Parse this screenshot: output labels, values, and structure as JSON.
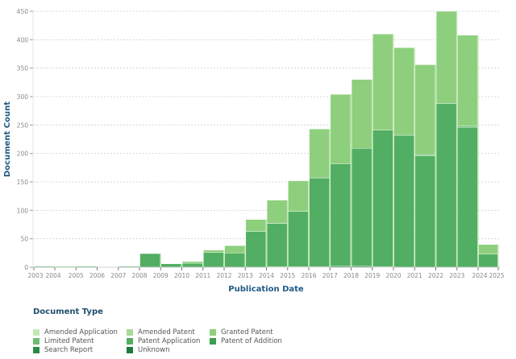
{
  "chart_data": {
    "type": "bar",
    "stacked": true,
    "title": "",
    "xlabel": "Publication Date",
    "ylabel": "Document Count",
    "ylim": [
      0,
      450
    ],
    "yticks": [
      0,
      50,
      100,
      150,
      200,
      250,
      300,
      350,
      400,
      450
    ],
    "grid": true,
    "legend_title": "Document Type",
    "legend_position": "bottom-left",
    "categories": [
      "2003",
      "2004",
      "2005",
      "2006",
      "2007",
      "2008",
      "2009",
      "2010",
      "2011",
      "2012",
      "2013",
      "2014",
      "2015",
      "2016",
      "2017",
      "2018",
      "2019",
      "2020",
      "2021",
      "2022",
      "2023",
      "2024"
    ],
    "tick_labels": [
      "2003",
      "2004",
      "2005",
      "2006",
      "2007",
      "2008",
      "2009",
      "2010",
      "2011",
      "2012",
      "2013",
      "2014",
      "2015",
      "2016",
      "2017",
      "2018",
      "2019",
      "2020",
      "2021",
      "2022",
      "2023",
      "2024",
      "2025"
    ],
    "series": [
      {
        "name": "Unknown",
        "color": "#1e7a3c",
        "values": [
          0,
          0,
          0,
          0,
          0,
          0,
          0,
          0,
          0,
          0,
          0,
          1,
          1,
          1,
          2,
          2,
          1,
          0,
          0,
          0,
          0,
          0
        ]
      },
      {
        "name": "Search Report",
        "color": "#2e8b47",
        "values": [
          0,
          0,
          0,
          0,
          0,
          0,
          0,
          0,
          0,
          0,
          0,
          0,
          0,
          0,
          0,
          0,
          0,
          0,
          0,
          0,
          0,
          0
        ]
      },
      {
        "name": "Patent of Addition",
        "color": "#3c9e50",
        "values": [
          0,
          0,
          0,
          0,
          0,
          0,
          0,
          0,
          0,
          0,
          0,
          0,
          0,
          0,
          0,
          0,
          0,
          0,
          0,
          0,
          0,
          0
        ]
      },
      {
        "name": "Patent Application",
        "color": "#52ae62",
        "values": [
          1,
          0,
          1,
          0,
          1,
          24,
          6,
          7,
          26,
          25,
          63,
          76,
          97,
          156,
          180,
          207,
          240,
          232,
          196,
          288,
          246,
          23
        ]
      },
      {
        "name": "Limited Patent",
        "color": "#6bbf72",
        "values": [
          0,
          0,
          0,
          0,
          0,
          0,
          0,
          0,
          0,
          0,
          0,
          0,
          0,
          0,
          0,
          0,
          0,
          0,
          2,
          0,
          2,
          0
        ]
      },
      {
        "name": "Granted Patent",
        "color": "#8ecf7e",
        "values": [
          0,
          1,
          0,
          0,
          0,
          0,
          0,
          3,
          4,
          13,
          21,
          41,
          54,
          86,
          122,
          121,
          169,
          154,
          158,
          162,
          160,
          17
        ]
      },
      {
        "name": "Amended Patent",
        "color": "#a7da95",
        "values": [
          0,
          0,
          0,
          0,
          0,
          0,
          0,
          0,
          0,
          0,
          0,
          0,
          0,
          0,
          0,
          0,
          0,
          0,
          0,
          0,
          0,
          0
        ]
      },
      {
        "name": "Amended Application",
        "color": "#c5e8b4",
        "values": [
          0,
          0,
          0,
          0,
          0,
          0,
          0,
          0,
          0,
          0,
          0,
          0,
          0,
          0,
          0,
          0,
          0,
          0,
          0,
          0,
          0,
          0
        ]
      }
    ]
  },
  "legend": {
    "title": "Document Type",
    "items": [
      {
        "label": "Amended Application",
        "color": "#c5e8b4"
      },
      {
        "label": "Amended Patent",
        "color": "#a7da95"
      },
      {
        "label": "Granted Patent",
        "color": "#8ecf7e"
      },
      {
        "label": "Limited Patent",
        "color": "#6bbf72"
      },
      {
        "label": "Patent Application",
        "color": "#52ae62"
      },
      {
        "label": "Patent of Addition",
        "color": "#3c9e50"
      },
      {
        "label": "Search Report",
        "color": "#2e8b47"
      },
      {
        "label": "Unknown",
        "color": "#1e7a3c"
      }
    ]
  }
}
